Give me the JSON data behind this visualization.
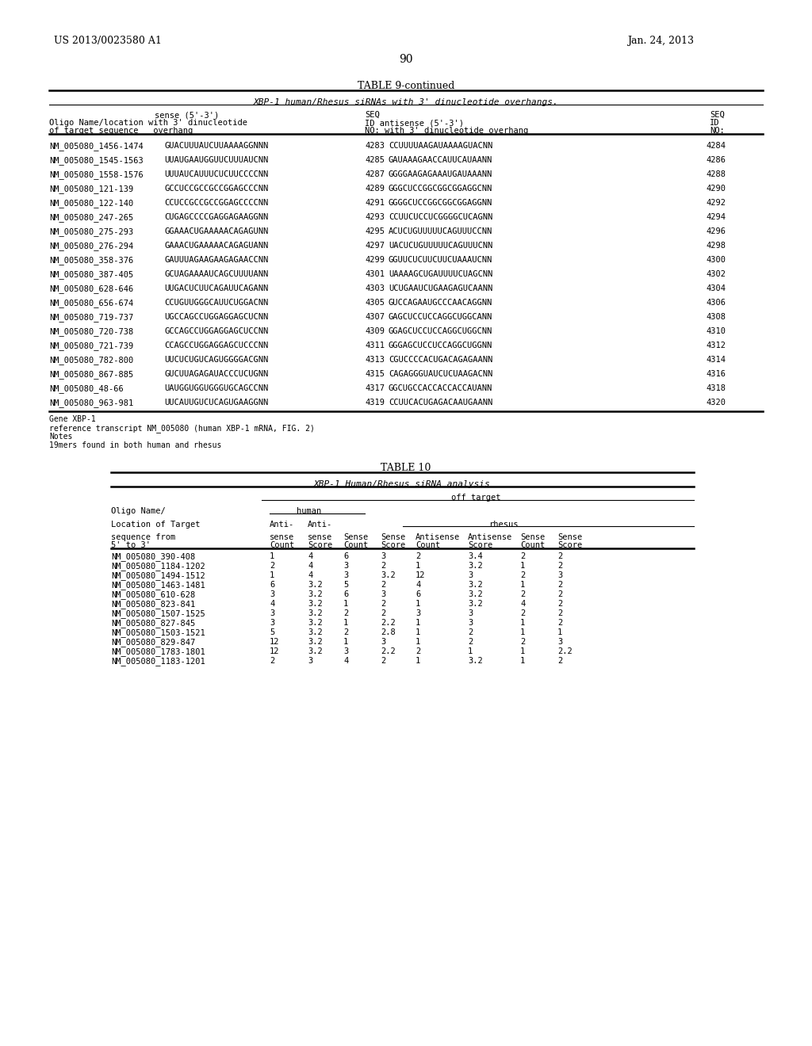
{
  "page_number": "90",
  "patent_left": "US 2013/0023580 A1",
  "patent_right": "Jan. 24, 2013",
  "table9_title": "TABLE 9-continued",
  "table9_subtitle": "XBP-1 human/Rhesus siRNAs with 3' dinucleotide overhangs.",
  "table9_rows": [
    [
      "NM_005080_1456-1474",
      "GUACUUUAUCUUAAAAGGNNN",
      "4283",
      "CCUUUUAAGAUAAAAGUACNN",
      "4284"
    ],
    [
      "NM_005080_1545-1563",
      "UUAUGAAUGGUUCUUUAUCNN",
      "4285",
      "GAUAAAGAACCAUUCAUAANN",
      "4286"
    ],
    [
      "NM_005080_1558-1576",
      "UUUAUCAUUUCUCUUCCCCNN",
      "4287",
      "GGGGAAGAGAAAUGAUAAANN",
      "4288"
    ],
    [
      "NM_005080_121-139",
      "GCCUCCGCCGCCGGAGCCCNN",
      "4289",
      "GGGCUCCGGCGGCGGAGGCNN",
      "4290"
    ],
    [
      "NM_005080_122-140",
      "CCUCCGCCGCCGGAGCCCCNN",
      "4291",
      "GGGGCUCCGGCGGCGGAGGNN",
      "4292"
    ],
    [
      "NM_005080_247-265",
      "CUGAGCCCCGAGGAGAAGGNN",
      "4293",
      "CCUUCUCCUCGGGGCUCAGNN",
      "4294"
    ],
    [
      "NM_005080_275-293",
      "GGAAACUGAAAAACAGAGUNN",
      "4295",
      "ACUCUGUUUUUCAGUUUCCNN",
      "4296"
    ],
    [
      "NM_005080_276-294",
      "GAAACUGAAAAACAGAGUANN",
      "4297",
      "UACUCUGUUUUUCAGUUUCNN",
      "4298"
    ],
    [
      "NM_005080_358-376",
      "GAUUUAGAAGAAGAGAACCNN",
      "4299",
      "GGUUCUCUUCUUCUAAAUCNN",
      "4300"
    ],
    [
      "NM_005080_387-405",
      "GCUAGAAAAUCAGCUUUUANN",
      "4301",
      "UAAAAGCUGAUUUUCUAGCNN",
      "4302"
    ],
    [
      "NM_005080_628-646",
      "UUGACUCUUCAGAUUCAGANN",
      "4303",
      "UCUGAAUCUGAAGAGUCAANN",
      "4304"
    ],
    [
      "NM_005080_656-674",
      "CCUGUUGGGCAUUCUGGACNN",
      "4305",
      "GUCCAGAAUGCCCAACAGGNN",
      "4306"
    ],
    [
      "NM_005080_719-737",
      "UGCCAGCCUGGAGGAGCUCNN",
      "4307",
      "GAGCUCCUCCAGGCUGGCANN",
      "4308"
    ],
    [
      "NM_005080_720-738",
      "GCCAGCCUGGAGGAGCUCCNN",
      "4309",
      "GGAGCUCCUCCAGGCUGGCNN",
      "4310"
    ],
    [
      "NM_005080_721-739",
      "CCAGCCUGGAGGAGCUCCCNN",
      "4311",
      "GGGAGCUCCUCCAGGCUGGNN",
      "4312"
    ],
    [
      "NM_005080_782-800",
      "UUCUCUGUCAGUGGGGACGNN",
      "4313",
      "CGUCCCCACUGACAGAGAANN",
      "4314"
    ],
    [
      "NM_005080_867-885",
      "GUCUUAGAGAUACCCUCUGNN",
      "4315",
      "CAGAGGGUAUCUCUAAGACNN",
      "4316"
    ],
    [
      "NM_005080_48-66",
      "UAUGGUGGUGGGUGCAGCCNN",
      "4317",
      "GGCUGCCACCACCACCAUANN",
      "4318"
    ],
    [
      "NM_005080_963-981",
      "UUCAUUGUCUCAGUGAAGGNN",
      "4319",
      "CCUUCACUGAGACAAUGAANN",
      "4320"
    ]
  ],
  "table9_footnotes": [
    "Gene XBP-1",
    "reference transcript NM_005080 (human XBP-1 mRNA, FIG. 2)",
    "Notes",
    "19mers found in both human and rhesus"
  ],
  "table10_title": "TABLE 10",
  "table10_subtitle": "XBP-1 Human/Rhesus siRNA analysis",
  "table10_rows": [
    [
      "NM_005080_390-408",
      "1",
      "4",
      "6",
      "3",
      "2",
      "3.4",
      "2",
      "2"
    ],
    [
      "NM_005080_1184-1202",
      "2",
      "4",
      "3",
      "2",
      "1",
      "3.2",
      "1",
      "2"
    ],
    [
      "NM_005080_1494-1512",
      "1",
      "4",
      "3",
      "3.2",
      "12",
      "3",
      "2",
      "3"
    ],
    [
      "NM_005080_1463-1481",
      "6",
      "3.2",
      "5",
      "2",
      "4",
      "3.2",
      "1",
      "2"
    ],
    [
      "NM_005080_610-628",
      "3",
      "3.2",
      "6",
      "3",
      "6",
      "3.2",
      "2",
      "2"
    ],
    [
      "NM_005080_823-841",
      "4",
      "3.2",
      "1",
      "2",
      "1",
      "3.2",
      "4",
      "2"
    ],
    [
      "NM_005080_1507-1525",
      "3",
      "3.2",
      "2",
      "2",
      "3",
      "3",
      "2",
      "2"
    ],
    [
      "NM_005080_827-845",
      "3",
      "3.2",
      "1",
      "2.2",
      "1",
      "3",
      "1",
      "2"
    ],
    [
      "NM_005080_1503-1521",
      "5",
      "3.2",
      "2",
      "2.8",
      "1",
      "2",
      "1",
      "1"
    ],
    [
      "NM_005080_829-847",
      "12",
      "3.2",
      "1",
      "3",
      "1",
      "2",
      "2",
      "3"
    ],
    [
      "NM_005080_1783-1801",
      "12",
      "3.2",
      "3",
      "2.2",
      "2",
      "1",
      "1",
      "2.2"
    ],
    [
      "NM_005080_1183-1201",
      "2",
      "3",
      "4",
      "2",
      "1",
      "3.2",
      "1",
      "2"
    ]
  ],
  "background_color": "#ffffff"
}
